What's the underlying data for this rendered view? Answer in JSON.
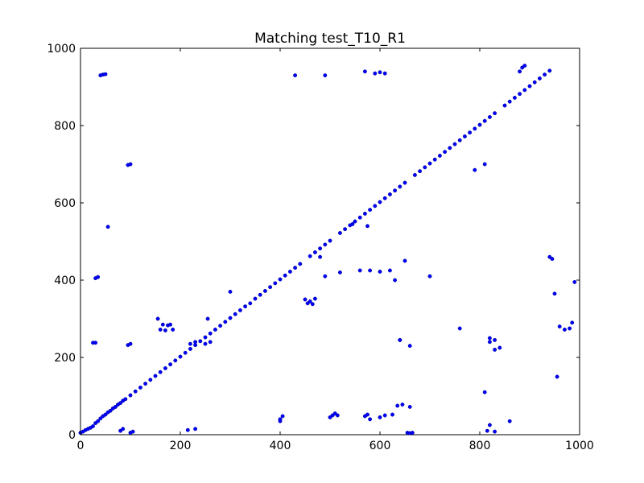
{
  "chart_data": {
    "type": "scatter",
    "title": "Matching test_T10_R1",
    "xlabel": "",
    "ylabel": "",
    "xlim": [
      0,
      1000
    ],
    "ylim": [
      0,
      1000
    ],
    "xticks": [
      0,
      200,
      400,
      600,
      800,
      1000
    ],
    "yticks": [
      0,
      200,
      400,
      600,
      800,
      1000
    ],
    "xtick_labels": [
      "0",
      "200",
      "400",
      "600",
      "800",
      "1000"
    ],
    "ytick_labels": [
      "0",
      "200",
      "400",
      "600",
      "800",
      "1000"
    ],
    "grid": false,
    "marker_color": "#0000ff",
    "marker_edge_color": "#00008b",
    "series": [
      {
        "x": [
          0,
          5,
          10,
          15,
          20,
          25,
          30,
          35,
          40,
          45,
          50,
          55,
          60,
          65,
          70,
          75,
          80,
          85,
          90,
          100,
          110,
          120,
          130,
          140,
          150,
          160,
          170,
          180,
          190,
          200,
          210,
          220,
          230,
          240,
          250,
          260,
          270,
          280,
          290,
          300,
          310,
          320,
          330,
          340,
          350,
          360,
          370,
          380,
          390,
          400,
          410,
          420,
          430,
          440,
          460,
          470,
          480,
          490,
          500,
          520,
          530,
          540,
          550,
          560,
          570,
          580,
          590,
          600,
          610,
          620,
          630,
          640,
          650,
          670,
          680,
          690,
          700,
          710,
          720,
          730,
          740,
          750,
          760,
          770,
          780,
          790,
          800,
          810,
          820,
          830,
          850,
          860,
          870,
          880,
          890,
          900,
          910,
          920,
          930,
          940,
          40,
          45,
          50,
          95,
          100,
          55,
          30,
          35,
          25,
          30,
          95,
          100,
          155,
          160,
          165,
          170,
          175,
          180,
          185,
          255,
          250,
          260,
          300,
          220,
          230,
          400,
          405,
          450,
          455,
          460,
          465,
          470,
          480,
          490,
          520,
          560,
          580,
          600,
          620,
          630,
          640,
          660,
          700,
          760,
          790,
          810,
          820,
          830,
          840,
          950,
          955,
          960,
          970,
          980,
          985,
          990,
          940,
          945,
          400,
          430,
          490,
          570,
          590,
          600,
          610,
          545,
          575,
          640,
          650,
          660,
          580,
          600,
          625,
          500,
          505,
          510,
          515,
          570,
          575,
          610,
          635,
          645,
          655,
          660,
          665,
          810,
          815,
          820,
          830,
          860,
          215,
          230,
          80,
          85,
          100,
          105,
          820,
          830,
          880,
          885,
          890
        ],
        "y": [
          5,
          8,
          12,
          15,
          18,
          22,
          30,
          35,
          42,
          48,
          52,
          58,
          62,
          68,
          72,
          78,
          82,
          88,
          92,
          102,
          112,
          122,
          132,
          142,
          152,
          162,
          172,
          182,
          192,
          202,
          212,
          222,
          232,
          242,
          252,
          262,
          272,
          282,
          292,
          302,
          312,
          322,
          332,
          340,
          352,
          362,
          372,
          382,
          392,
          402,
          412,
          422,
          432,
          442,
          462,
          472,
          482,
          492,
          502,
          522,
          532,
          542,
          552,
          562,
          572,
          582,
          592,
          602,
          612,
          622,
          632,
          642,
          652,
          672,
          682,
          692,
          702,
          712,
          722,
          732,
          742,
          752,
          762,
          772,
          782,
          792,
          802,
          812,
          822,
          832,
          852,
          862,
          872,
          882,
          892,
          902,
          912,
          922,
          932,
          942,
          930,
          932,
          933,
          698,
          700,
          538,
          238,
          408,
          238,
          405,
          232,
          235,
          300,
          272,
          285,
          270,
          283,
          285,
          272,
          300,
          235,
          240,
          370,
          235,
          240,
          35,
          48,
          350,
          340,
          345,
          338,
          352,
          460,
          410,
          420,
          425,
          425,
          422,
          425,
          400,
          245,
          230,
          410,
          275,
          685,
          700,
          250,
          245,
          225,
          365,
          150,
          280,
          272,
          275,
          290,
          395,
          460,
          455,
          40,
          930,
          930,
          940,
          935,
          938,
          935,
          545,
          540,
          245,
          450,
          72,
          40,
          45,
          52,
          45,
          50,
          55,
          50,
          48,
          52,
          50,
          75,
          78,
          5,
          4,
          5,
          110,
          10,
          25,
          8,
          35,
          12,
          15,
          10,
          15,
          5,
          8,
          240,
          220,
          940,
          950,
          955
        ]
      }
    ]
  }
}
